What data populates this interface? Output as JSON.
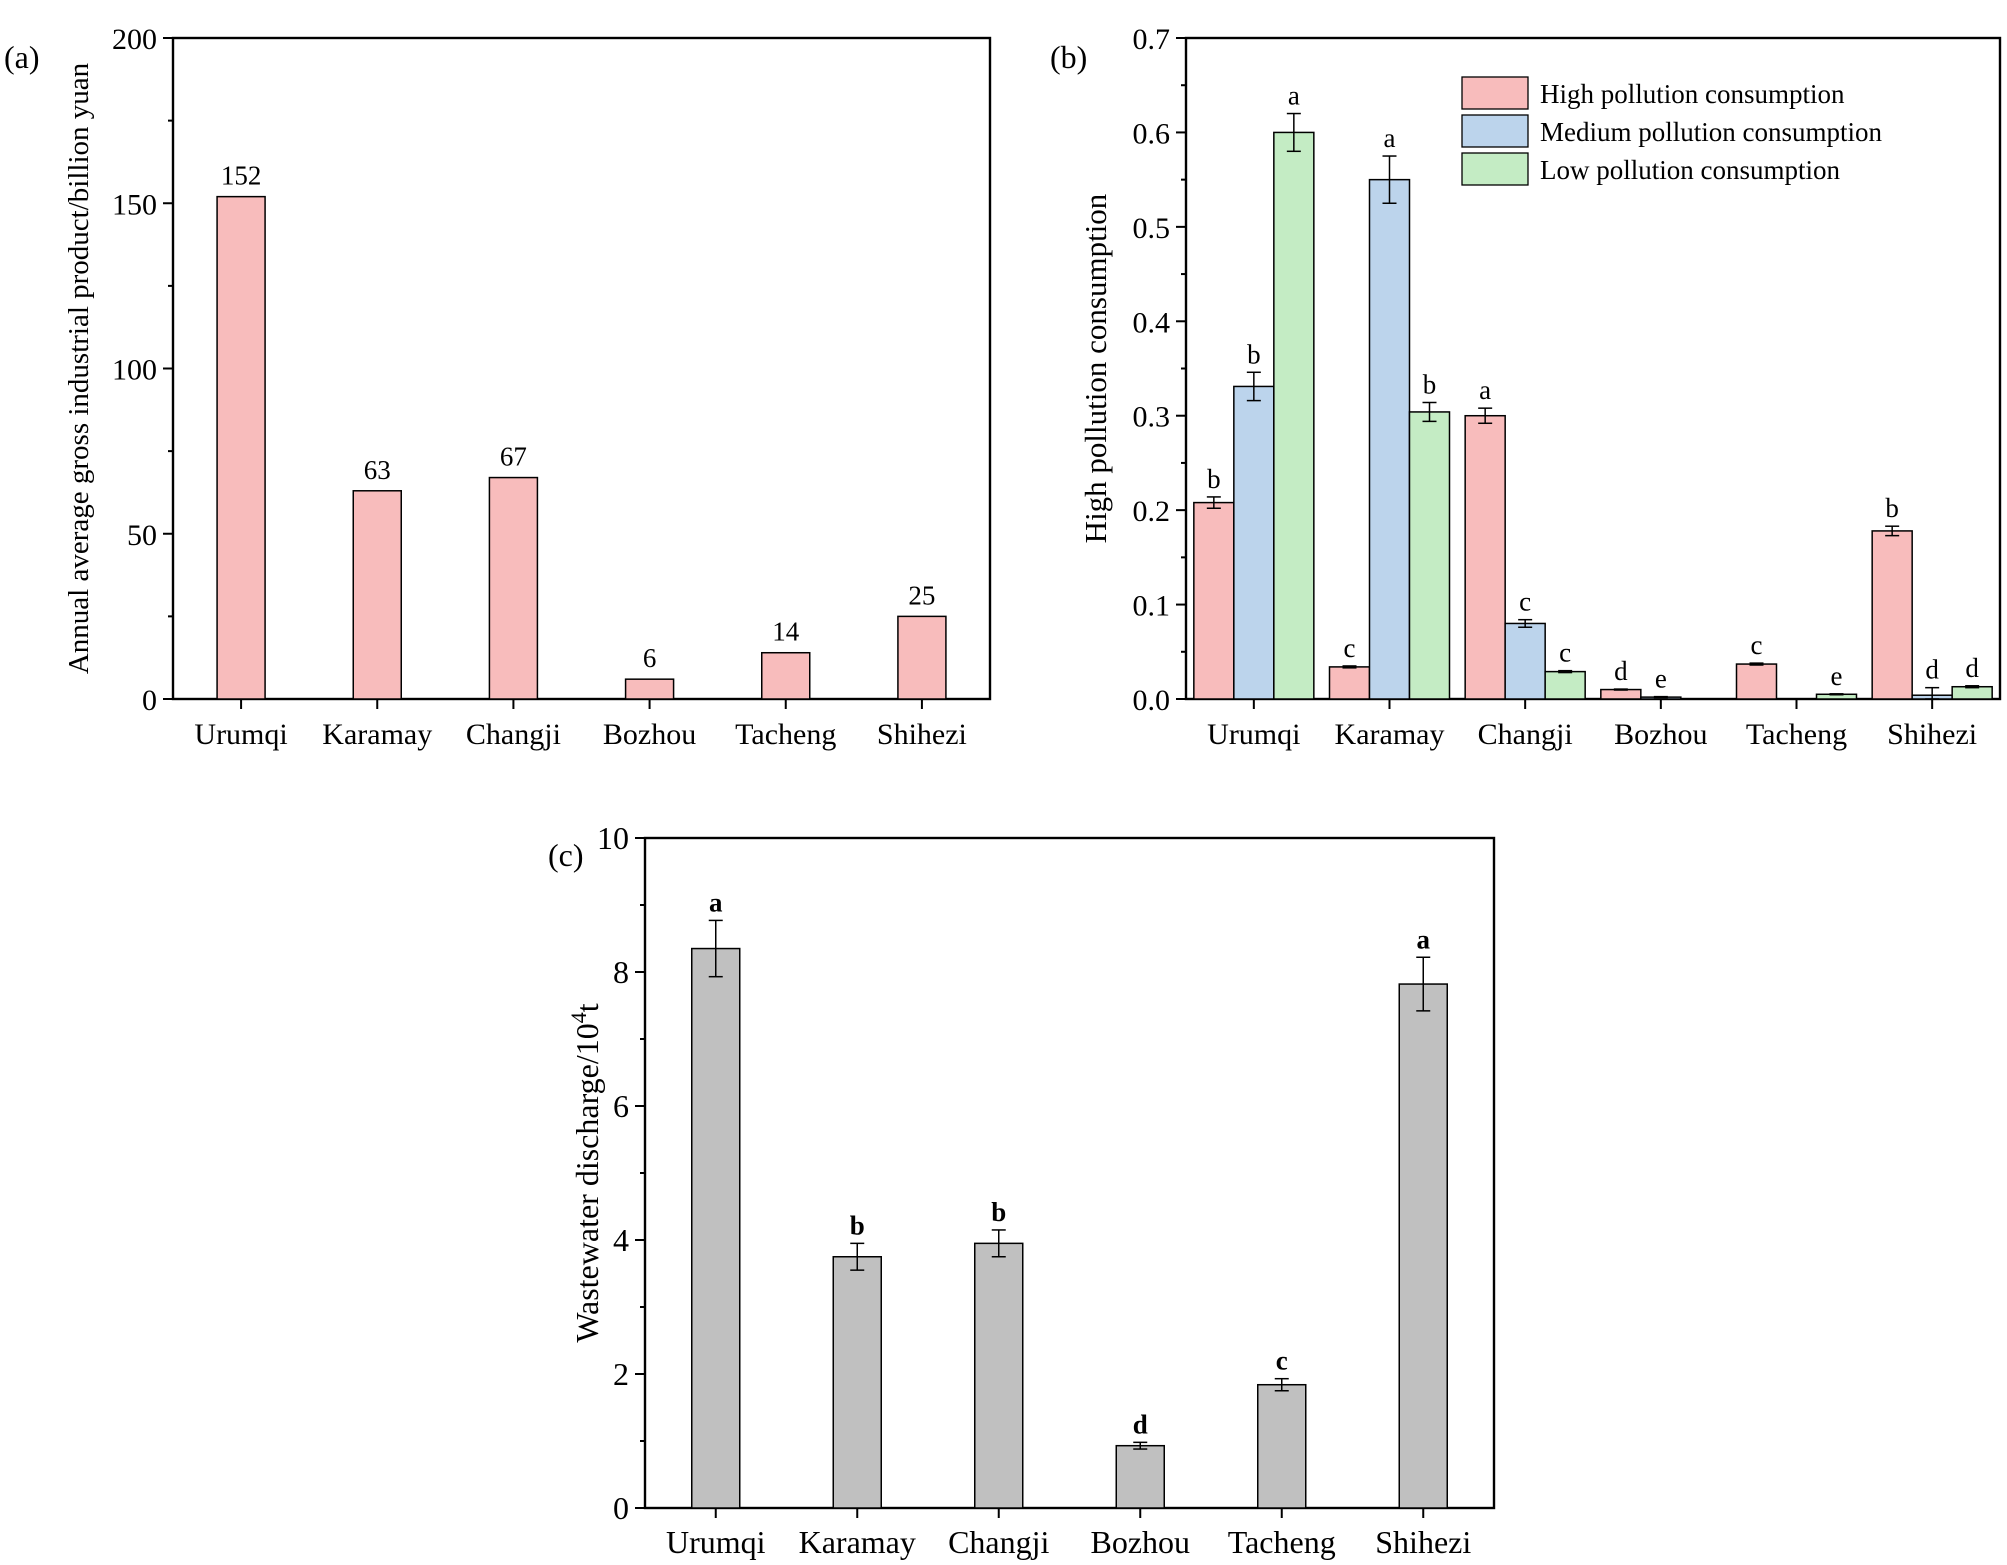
{
  "chart_data": [
    {
      "panel": "(a)",
      "type": "bar",
      "categories": [
        "Urumqi",
        "Karamay",
        "Changji",
        "Bozhou",
        "Tacheng",
        "Shihezi"
      ],
      "values": [
        152,
        63,
        67,
        6,
        14,
        25
      ],
      "data_labels": [
        "152",
        "63",
        "67",
        "6",
        "14",
        "25"
      ],
      "ylabel": "Annual average gross industrial product/billion yuan",
      "xlabel": "",
      "ylim": [
        0,
        200
      ],
      "yticks": [
        0,
        50,
        100,
        150,
        200
      ],
      "ytick_labels": [
        "0",
        "50",
        "100",
        "150",
        "200"
      ],
      "color": "#f8bcbc"
    },
    {
      "panel": "(b)",
      "type": "bar",
      "categories": [
        "Urumqi",
        "Karamay",
        "Changji",
        "Bozhou",
        "Tacheng",
        "Shihezi"
      ],
      "series": [
        {
          "name": "High pollution consumption",
          "color": "#f8bcbc",
          "values": [
            0.208,
            0.034,
            0.3,
            0.01,
            0.037,
            0.178
          ],
          "errors": [
            0.006,
            0.001,
            0.008,
            0.0005,
            0.001,
            0.005
          ],
          "letters": [
            "b",
            "c",
            "a",
            "d",
            "c",
            "b"
          ]
        },
        {
          "name": "Medium pollution consumption",
          "color": "#bcd4ec",
          "values": [
            0.331,
            0.55,
            0.08,
            0.002,
            0.0,
            0.004
          ],
          "errors": [
            0.015,
            0.025,
            0.004,
            0.0005,
            0.0,
            0.008
          ],
          "letters": [
            "b",
            "a",
            "c",
            "e",
            "",
            "d"
          ]
        },
        {
          "name": "Low pollution consumption",
          "color": "#c4ecc4",
          "values": [
            0.6,
            0.304,
            0.029,
            0.0,
            0.005,
            0.013
          ],
          "errors": [
            0.02,
            0.01,
            0.001,
            0.0,
            0.0005,
            0.001
          ],
          "letters": [
            "a",
            "b",
            "c",
            "",
            "e",
            "d"
          ]
        }
      ],
      "ylabel": "High pollution consumption",
      "xlabel": "",
      "ylim": [
        0,
        0.7
      ],
      "yticks": [
        0,
        0.1,
        0.2,
        0.3,
        0.4,
        0.5,
        0.6,
        0.7
      ],
      "ytick_labels": [
        "0.0",
        "0.1",
        "0.2",
        "0.3",
        "0.4",
        "0.5",
        "0.6",
        "0.7"
      ],
      "legend": "top-right"
    },
    {
      "panel": "(c)",
      "type": "bar",
      "categories": [
        "Urumqi",
        "Karamay",
        "Changji",
        "Bozhou",
        "Tacheng",
        "Shihezi"
      ],
      "values": [
        8.35,
        3.75,
        3.95,
        0.93,
        1.84,
        7.82
      ],
      "errors": [
        0.42,
        0.2,
        0.2,
        0.05,
        0.09,
        0.4
      ],
      "letters": [
        "a",
        "b",
        "b",
        "d",
        "c",
        "a"
      ],
      "ylabel_main": "Wastewater discharge/10",
      "ylabel_sup": "4",
      "ylabel_tail": "t",
      "xlabel": "",
      "ylim": [
        0,
        10
      ],
      "yticks": [
        0,
        2,
        4,
        6,
        8,
        10
      ],
      "ytick_labels": [
        "0",
        "2",
        "4",
        "6",
        "8",
        "10"
      ],
      "color": "#c0c0c0"
    }
  ]
}
